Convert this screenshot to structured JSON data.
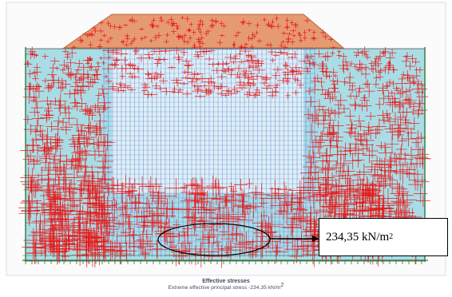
{
  "figure": {
    "colors": {
      "embankment_fill": "#e69a72",
      "embankment_edge": "#b5683f",
      "soil_fill": "#a9dde6",
      "stress_cross": "#e61a1a",
      "grid_line": "#4a5bd1",
      "boundary": "#2d7a3a",
      "frame_line": "#555555"
    }
  },
  "annotation": {
    "value_label": "234,35 kN/m",
    "value_exponent": "2"
  },
  "caption": {
    "title": "Effective stresses",
    "subtitle": "Extreme effective principal stress -234,35 kN/m",
    "subtitle_exponent": "2"
  }
}
